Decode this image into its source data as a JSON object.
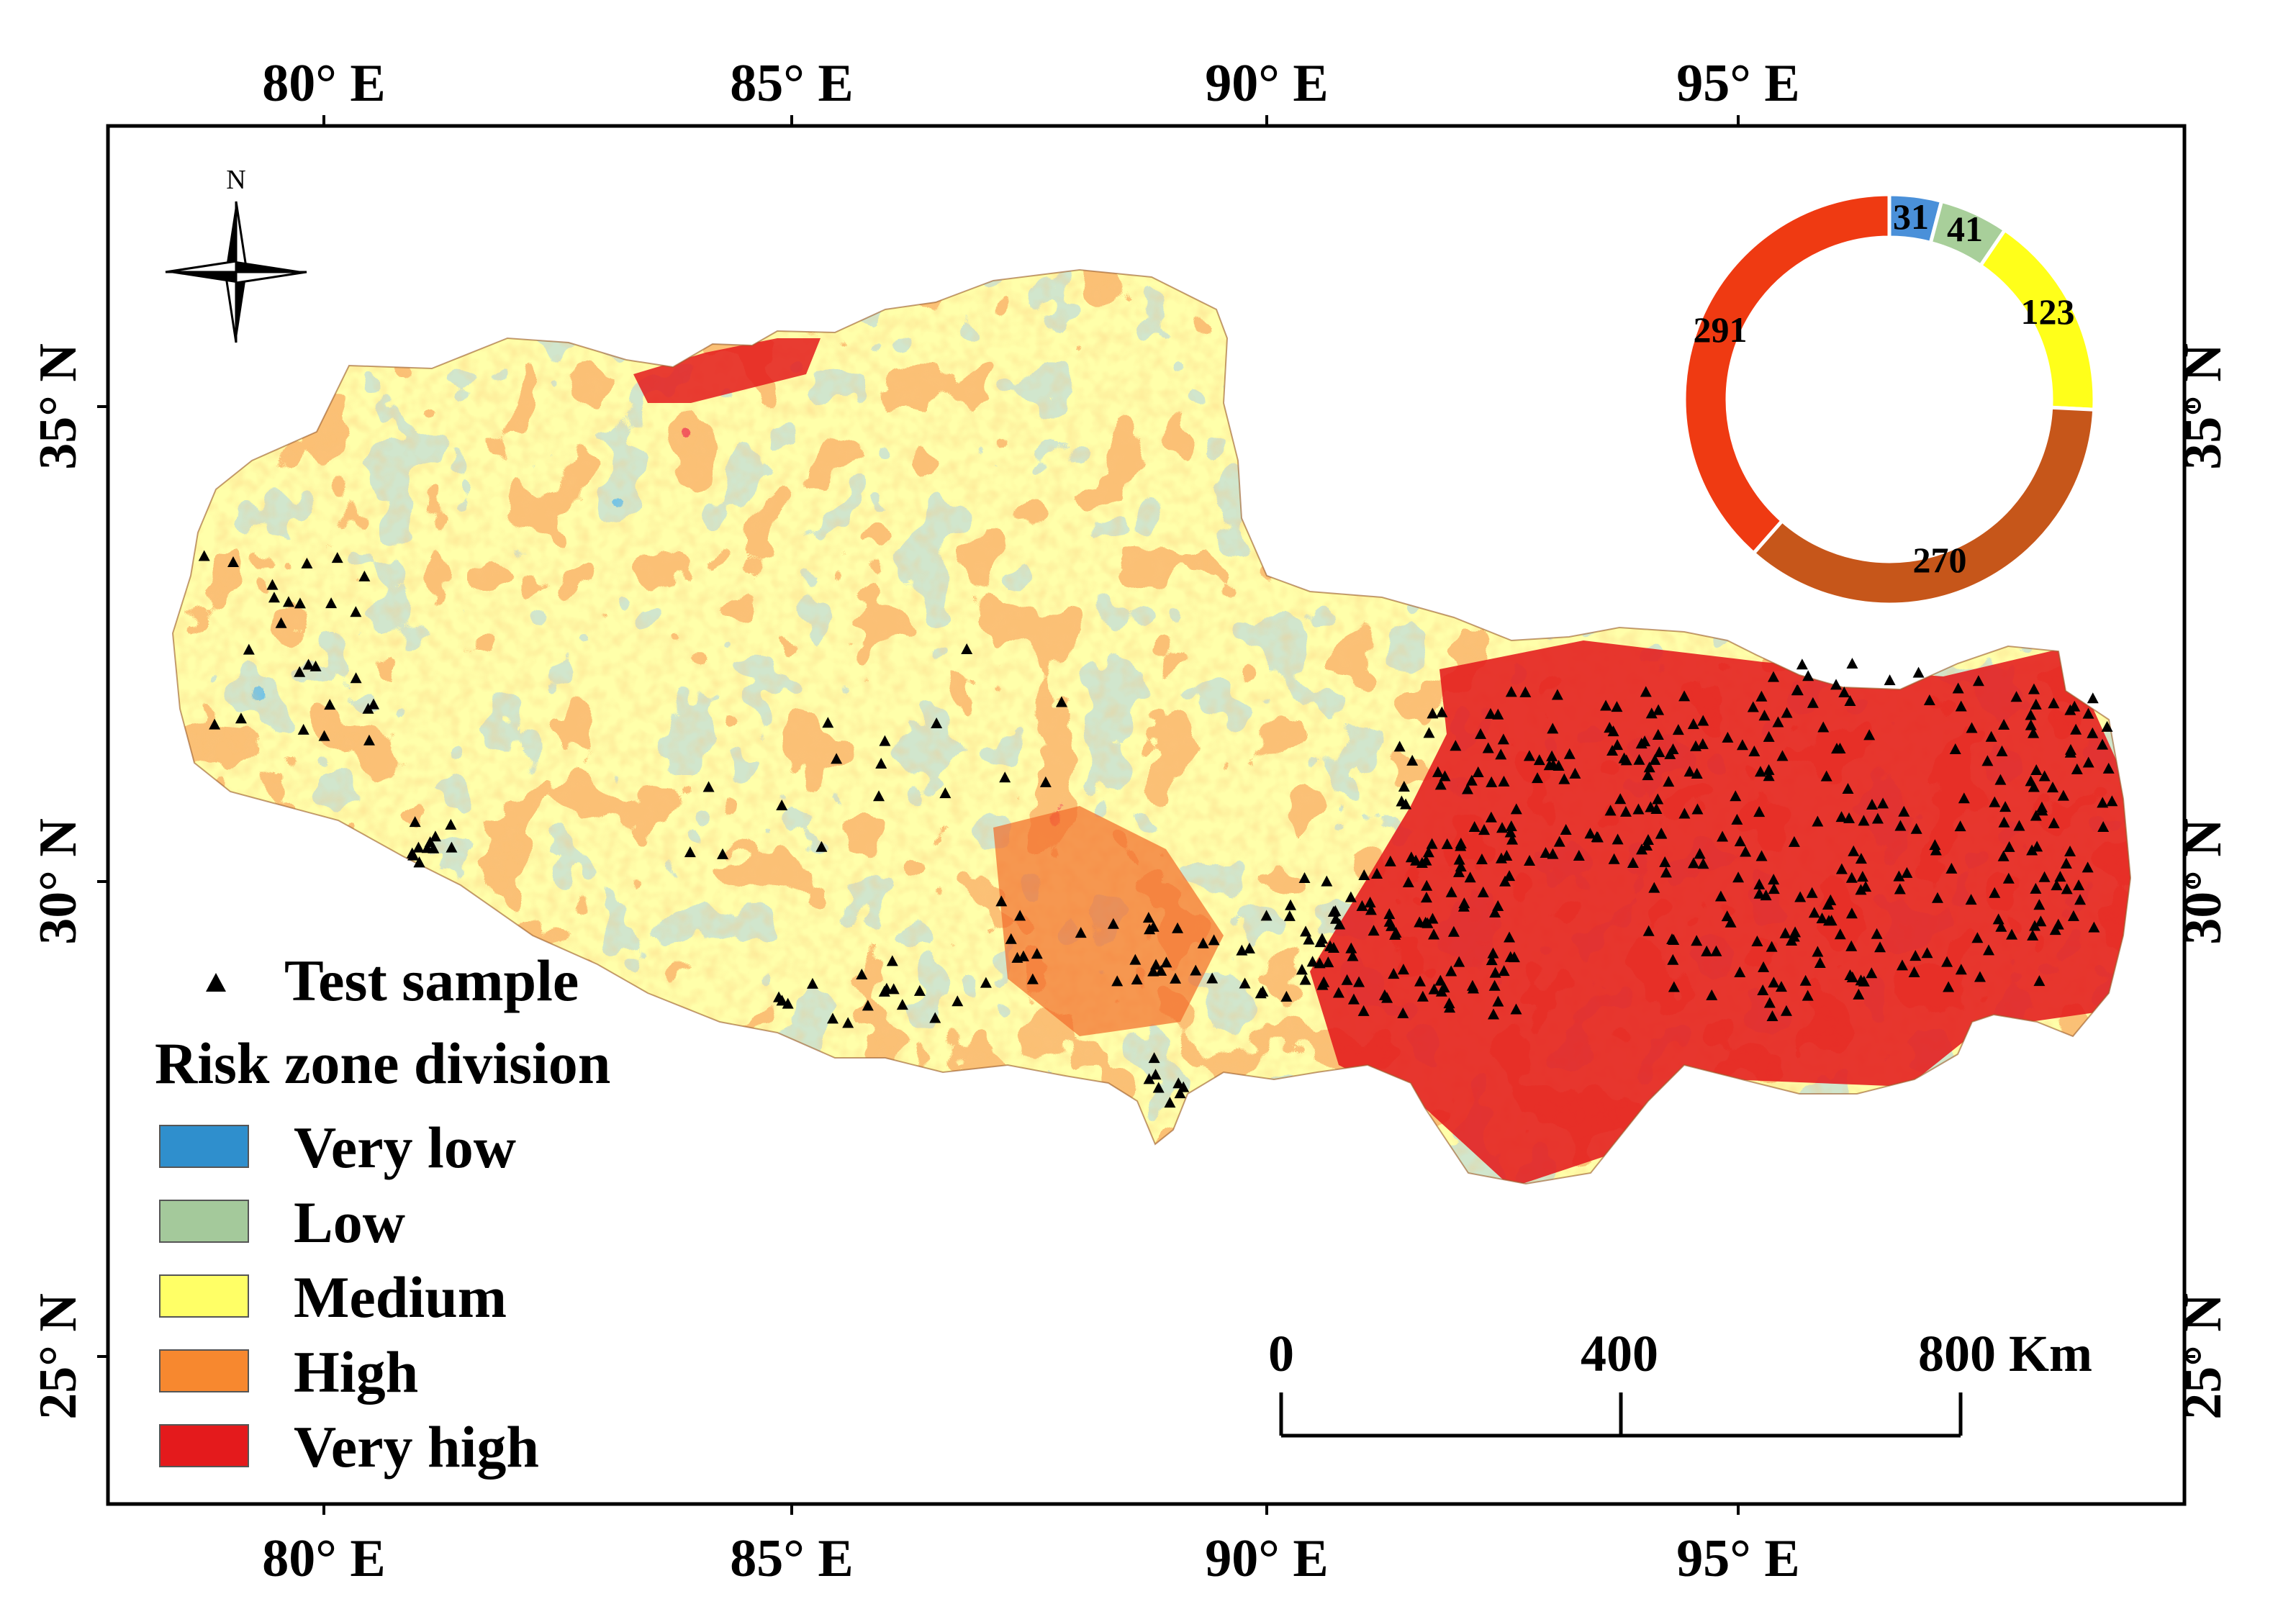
{
  "map": {
    "top_ticks": [
      "80° E",
      "85° E",
      "90° E",
      "95° E"
    ],
    "bottom_ticks": [
      "80° E",
      "85° E",
      "90° E",
      "95° E"
    ],
    "left_ticks": [
      "35° N",
      "30° N",
      "25° N"
    ],
    "right_ticks": [
      "35° N",
      "30° N",
      "25° N"
    ],
    "north_label": "N"
  },
  "legend": {
    "sample_label": "Test sample",
    "title": "Risk zone division",
    "classes": [
      {
        "label": "Very low",
        "color": "#2f8fcd"
      },
      {
        "label": "Low",
        "color": "#a4c99b"
      },
      {
        "label": "Medium",
        "color": "#ffff66"
      },
      {
        "label": "High",
        "color": "#f7882f"
      },
      {
        "label": "Very high",
        "color": "#e41a1c"
      }
    ]
  },
  "scale_bar": {
    "labels": [
      "0",
      "400",
      "800 Km"
    ]
  },
  "chart_data": {
    "type": "pie",
    "style": "donut",
    "title": "",
    "categories": [
      "Very low",
      "Low",
      "Medium",
      "High",
      "Very high"
    ],
    "values": [
      31,
      41,
      123,
      270,
      291
    ],
    "colors": [
      "#4a90d9",
      "#a8cf9a",
      "#ffff1a",
      "#c6561a",
      "#ef3a12"
    ]
  }
}
